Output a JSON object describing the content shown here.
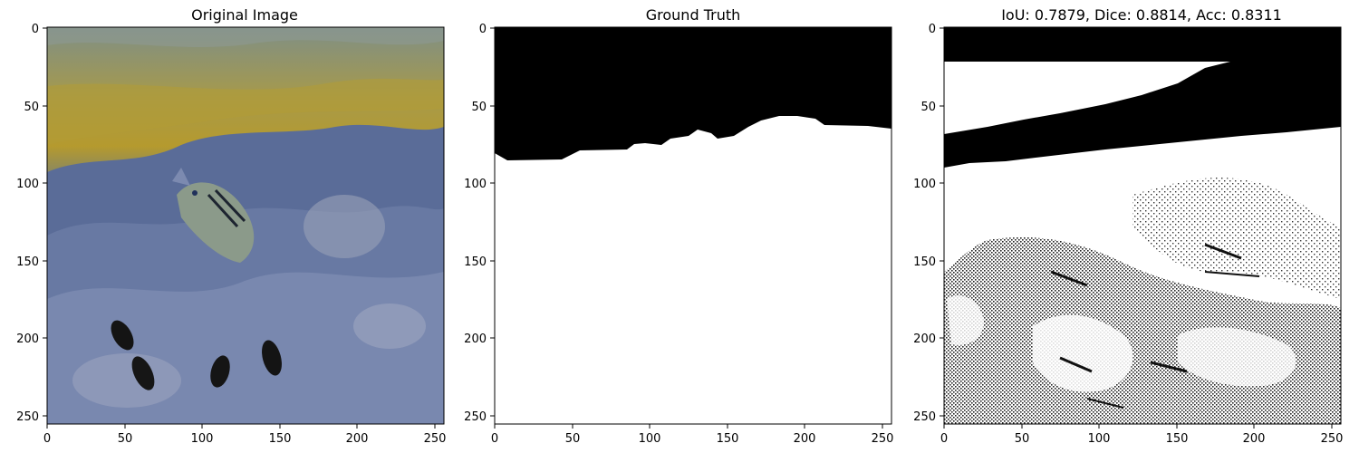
{
  "figure": {
    "panels": [
      {
        "title": "Original Image",
        "kind": "photo",
        "x_ticks": [
          "0",
          "50",
          "100",
          "150",
          "200",
          "250"
        ],
        "y_ticks": [
          "0",
          "50",
          "100",
          "150",
          "200",
          "250"
        ]
      },
      {
        "title": "Ground Truth",
        "kind": "mask",
        "x_ticks": [
          "0",
          "50",
          "100",
          "150",
          "200",
          "250"
        ],
        "y_ticks": [
          "0",
          "50",
          "100",
          "150",
          "200",
          "250"
        ]
      },
      {
        "title": "IoU: 0.7879, Dice: 0.8814, Acc: 0.8311",
        "kind": "prediction",
        "x_ticks": [
          "0",
          "50",
          "100",
          "150",
          "200",
          "250"
        ],
        "y_ticks": [
          "0",
          "50",
          "100",
          "150",
          "200",
          "250"
        ]
      }
    ],
    "colors": {
      "water_surface": "#b59a2e",
      "reef_blue": "#5c6f9a",
      "mask_foreground": "#ffffff",
      "mask_background": "#000000"
    }
  }
}
